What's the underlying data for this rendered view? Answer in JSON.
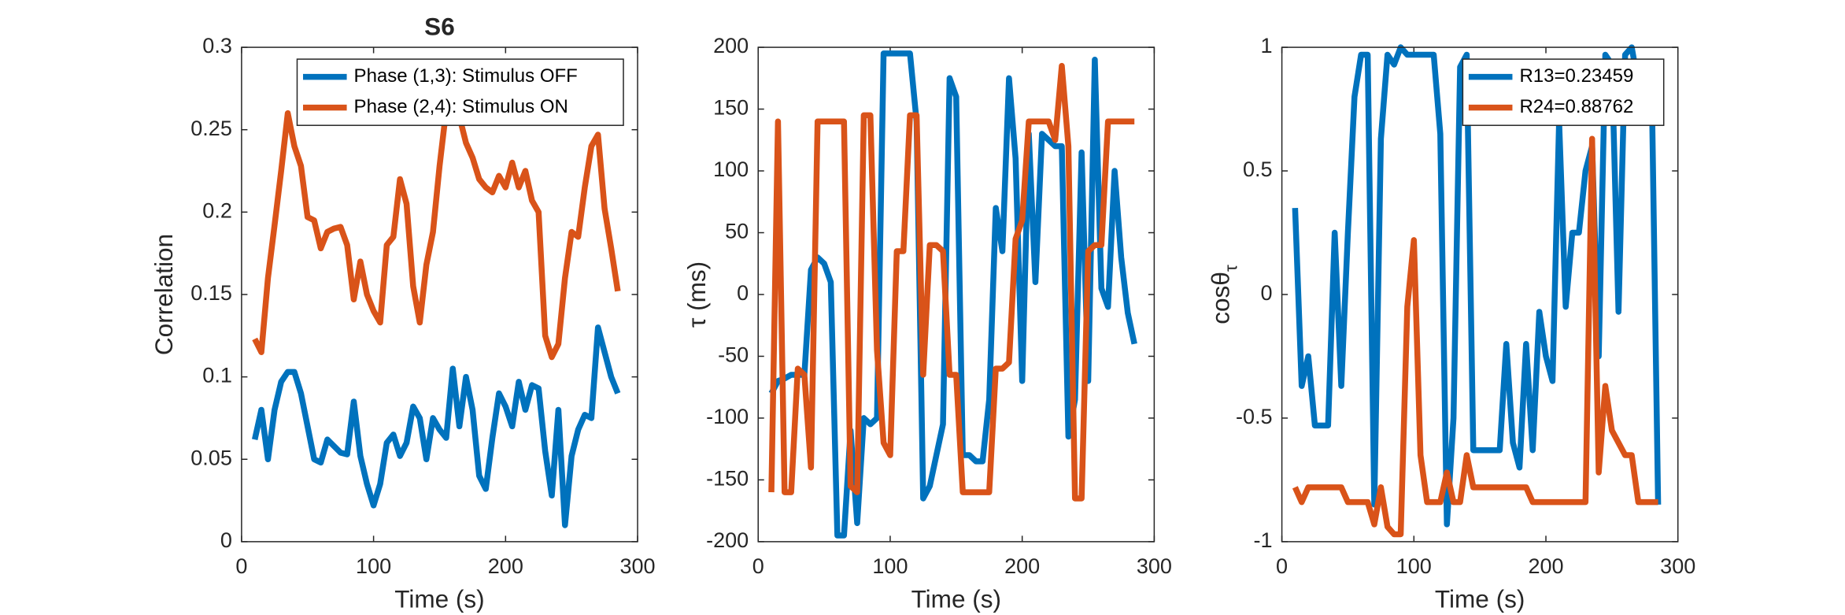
{
  "chart_data": [
    {
      "type": "line",
      "title": "S6",
      "xlabel": "Time (s)",
      "ylabel": "Correlation",
      "x": [
        10,
        15,
        20,
        25,
        30,
        35,
        40,
        45,
        50,
        55,
        60,
        65,
        70,
        75,
        80,
        85,
        90,
        95,
        100,
        105,
        110,
        115,
        120,
        125,
        130,
        135,
        140,
        145,
        150,
        155,
        160,
        165,
        170,
        175,
        180,
        185,
        190,
        195,
        200,
        205,
        210,
        215,
        220,
        225,
        230,
        235,
        240,
        245,
        250,
        255,
        260,
        265,
        270,
        275,
        280,
        285
      ],
      "series": [
        {
          "name": "Phase (1,3): Stimulus OFF",
          "color": "#0072BD",
          "values": [
            0.062,
            0.08,
            0.05,
            0.08,
            0.097,
            0.103,
            0.103,
            0.09,
            0.07,
            0.05,
            0.048,
            0.062,
            0.058,
            0.054,
            0.053,
            0.085,
            0.052,
            0.035,
            0.022,
            0.035,
            0.06,
            0.065,
            0.052,
            0.06,
            0.082,
            0.075,
            0.05,
            0.075,
            0.068,
            0.063,
            0.105,
            0.07,
            0.1,
            0.08,
            0.04,
            0.032,
            0.063,
            0.09,
            0.082,
            0.07,
            0.097,
            0.08,
            0.095,
            0.093,
            0.055,
            0.028,
            0.08,
            0.01,
            0.052,
            0.068,
            0.077,
            0.075,
            0.13,
            0.115,
            0.1,
            0.09
          ]
        },
        {
          "name": "Phase (2,4): Stimulus ON",
          "color": "#D95319",
          "values": [
            0.123,
            0.115,
            0.16,
            0.192,
            0.225,
            0.26,
            0.24,
            0.228,
            0.197,
            0.195,
            0.178,
            0.188,
            0.19,
            0.191,
            0.18,
            0.147,
            0.17,
            0.15,
            0.14,
            0.133,
            0.18,
            0.185,
            0.22,
            0.205,
            0.155,
            0.133,
            0.168,
            0.188,
            0.228,
            0.262,
            0.265,
            0.258,
            0.242,
            0.233,
            0.22,
            0.215,
            0.212,
            0.222,
            0.215,
            0.23,
            0.215,
            0.225,
            0.207,
            0.2,
            0.125,
            0.112,
            0.12,
            0.16,
            0.188,
            0.185,
            0.215,
            0.24,
            0.247,
            0.202,
            0.178,
            0.152
          ]
        }
      ],
      "xlim": [
        0,
        300
      ],
      "xticks": [
        0,
        100,
        200,
        300
      ],
      "ylim": [
        0,
        0.3
      ],
      "yticks": [
        0,
        0.05,
        0.1,
        0.15,
        0.2,
        0.25,
        0.3
      ],
      "legend": "upper-right"
    },
    {
      "type": "line",
      "xlabel": "Time (s)",
      "ylabel": "τ (ms)",
      "x": [
        10,
        15,
        20,
        25,
        30,
        35,
        40,
        45,
        50,
        55,
        60,
        65,
        70,
        75,
        80,
        85,
        90,
        95,
        100,
        105,
        110,
        115,
        120,
        125,
        130,
        135,
        140,
        145,
        150,
        155,
        160,
        165,
        170,
        175,
        180,
        185,
        190,
        195,
        200,
        205,
        210,
        215,
        220,
        225,
        230,
        235,
        240,
        245,
        250,
        255,
        260,
        265,
        270,
        275,
        280,
        285
      ],
      "series": [
        {
          "color": "#0072BD",
          "values": [
            -80,
            -70,
            -68,
            -65,
            -65,
            -65,
            20,
            30,
            25,
            10,
            -195,
            -195,
            -110,
            -185,
            -100,
            -105,
            -100,
            195,
            195,
            195,
            195,
            195,
            140,
            -165,
            -155,
            -130,
            -105,
            175,
            160,
            -130,
            -130,
            -135,
            -135,
            -85,
            70,
            35,
            175,
            110,
            -70,
            130,
            10,
            130,
            125,
            120,
            120,
            -115,
            -85,
            115,
            -70,
            190,
            5,
            -10,
            100,
            30,
            -15,
            -40
          ]
        },
        {
          "color": "#D95319",
          "values": [
            -160,
            140,
            -160,
            -160,
            -60,
            -65,
            -140,
            140,
            140,
            140,
            140,
            140,
            -155,
            -160,
            145,
            145,
            -45,
            -120,
            -130,
            35,
            35,
            145,
            145,
            -65,
            40,
            40,
            35,
            -65,
            -65,
            -160,
            -160,
            -160,
            -160,
            -160,
            -60,
            -60,
            -55,
            45,
            60,
            140,
            140,
            140,
            140,
            125,
            185,
            120,
            -165,
            -165,
            35,
            40,
            40,
            140,
            140,
            140,
            140,
            140
          ]
        }
      ],
      "xlim": [
        0,
        300
      ],
      "xticks": [
        0,
        100,
        200,
        300
      ],
      "ylim": [
        -200,
        200
      ],
      "yticks": [
        -200,
        -150,
        -100,
        -50,
        0,
        50,
        100,
        150,
        200
      ]
    },
    {
      "type": "line",
      "xlabel": "Time (s)",
      "ylabel": "cosθ",
      "ylabel_subscript": "τ",
      "x": [
        10,
        15,
        20,
        25,
        30,
        35,
        40,
        45,
        50,
        55,
        60,
        65,
        70,
        75,
        80,
        85,
        90,
        95,
        100,
        105,
        110,
        115,
        120,
        125,
        130,
        135,
        140,
        145,
        150,
        155,
        160,
        165,
        170,
        175,
        180,
        185,
        190,
        195,
        200,
        205,
        210,
        215,
        220,
        225,
        230,
        235,
        240,
        245,
        250,
        255,
        260,
        265,
        270,
        275,
        280,
        285
      ],
      "series": [
        {
          "name": "R13=0.23459",
          "color": "#0072BD",
          "values": [
            0.35,
            -0.37,
            -0.25,
            -0.53,
            -0.53,
            -0.53,
            0.25,
            -0.37,
            0.25,
            0.8,
            0.97,
            0.97,
            -0.85,
            0.63,
            0.97,
            0.93,
            1.0,
            0.97,
            0.97,
            0.97,
            0.97,
            0.97,
            0.65,
            -0.93,
            -0.5,
            0.92,
            0.97,
            -0.63,
            -0.63,
            -0.63,
            -0.63,
            -0.63,
            -0.2,
            -0.6,
            -0.7,
            -0.2,
            -0.63,
            -0.07,
            -0.25,
            -0.35,
            0.7,
            -0.05,
            0.25,
            0.25,
            0.5,
            0.6,
            -0.25,
            0.97,
            0.93,
            -0.07,
            0.97,
            1.0,
            0.85,
            0.9,
            0.9,
            -0.85
          ]
        },
        {
          "name": "R24=0.88762",
          "color": "#D95319",
          "values": [
            -0.78,
            -0.84,
            -0.78,
            -0.78,
            -0.78,
            -0.78,
            -0.78,
            -0.78,
            -0.84,
            -0.84,
            -0.84,
            -0.84,
            -0.93,
            -0.78,
            -0.94,
            -0.97,
            -0.97,
            -0.05,
            0.22,
            -0.65,
            -0.84,
            -0.84,
            -0.84,
            -0.72,
            -0.84,
            -0.84,
            -0.65,
            -0.78,
            -0.78,
            -0.78,
            -0.78,
            -0.78,
            -0.78,
            -0.78,
            -0.78,
            -0.78,
            -0.84,
            -0.84,
            -0.84,
            -0.84,
            -0.84,
            -0.84,
            -0.84,
            -0.84,
            -0.84,
            0.63,
            -0.72,
            -0.37,
            -0.55,
            -0.6,
            -0.65,
            -0.65,
            -0.84,
            -0.84,
            -0.84,
            -0.84
          ]
        }
      ],
      "xlim": [
        0,
        300
      ],
      "xticks": [
        0,
        100,
        200,
        300
      ],
      "ylim": [
        -1,
        1
      ],
      "yticks": [
        -1,
        -0.5,
        0,
        0.5,
        1
      ],
      "legend": "upper-right"
    }
  ]
}
